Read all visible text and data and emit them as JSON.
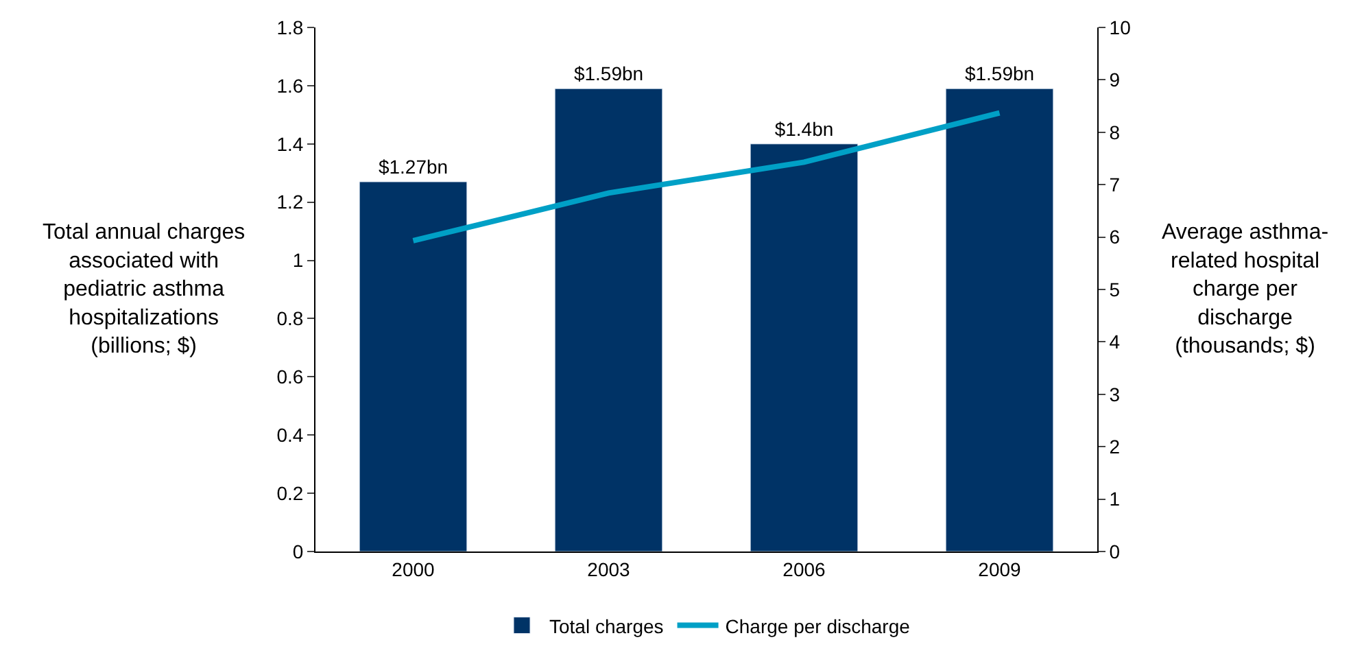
{
  "chart_data": {
    "type": "bar",
    "categories": [
      "2000",
      "2003",
      "2006",
      "2009"
    ],
    "ylabel": "Total annual charges associated with pediatric asthma hospitalizations (billions; $)",
    "y2label": "Average asthma-related hospital charge per discharge (thousands; $)",
    "series": [
      {
        "name": "Total charges",
        "color": "#003366",
        "values": [
          1.27,
          1.59,
          1.4,
          1.59
        ],
        "value_labels": [
          "$1.27bn",
          "$1.59bn",
          "$1.4bn",
          "$1.59bn"
        ]
      },
      {
        "name": "Charge per discharge",
        "type": "line",
        "axis": "y2",
        "color": "#00a0c6",
        "values": [
          5.93,
          6.84,
          7.43,
          8.37
        ]
      }
    ],
    "ylim": [
      0,
      1.8
    ],
    "yticks": [
      0,
      0.2,
      0.4,
      0.6,
      0.8,
      1,
      1.2,
      1.4,
      1.6,
      1.8
    ],
    "y2lim": [
      0,
      10
    ],
    "y2ticks": [
      0,
      1,
      2,
      3,
      4,
      5,
      6,
      7,
      8,
      9,
      10
    ],
    "legend": "bottom",
    "marker": "none",
    "line_style": "solid"
  }
}
